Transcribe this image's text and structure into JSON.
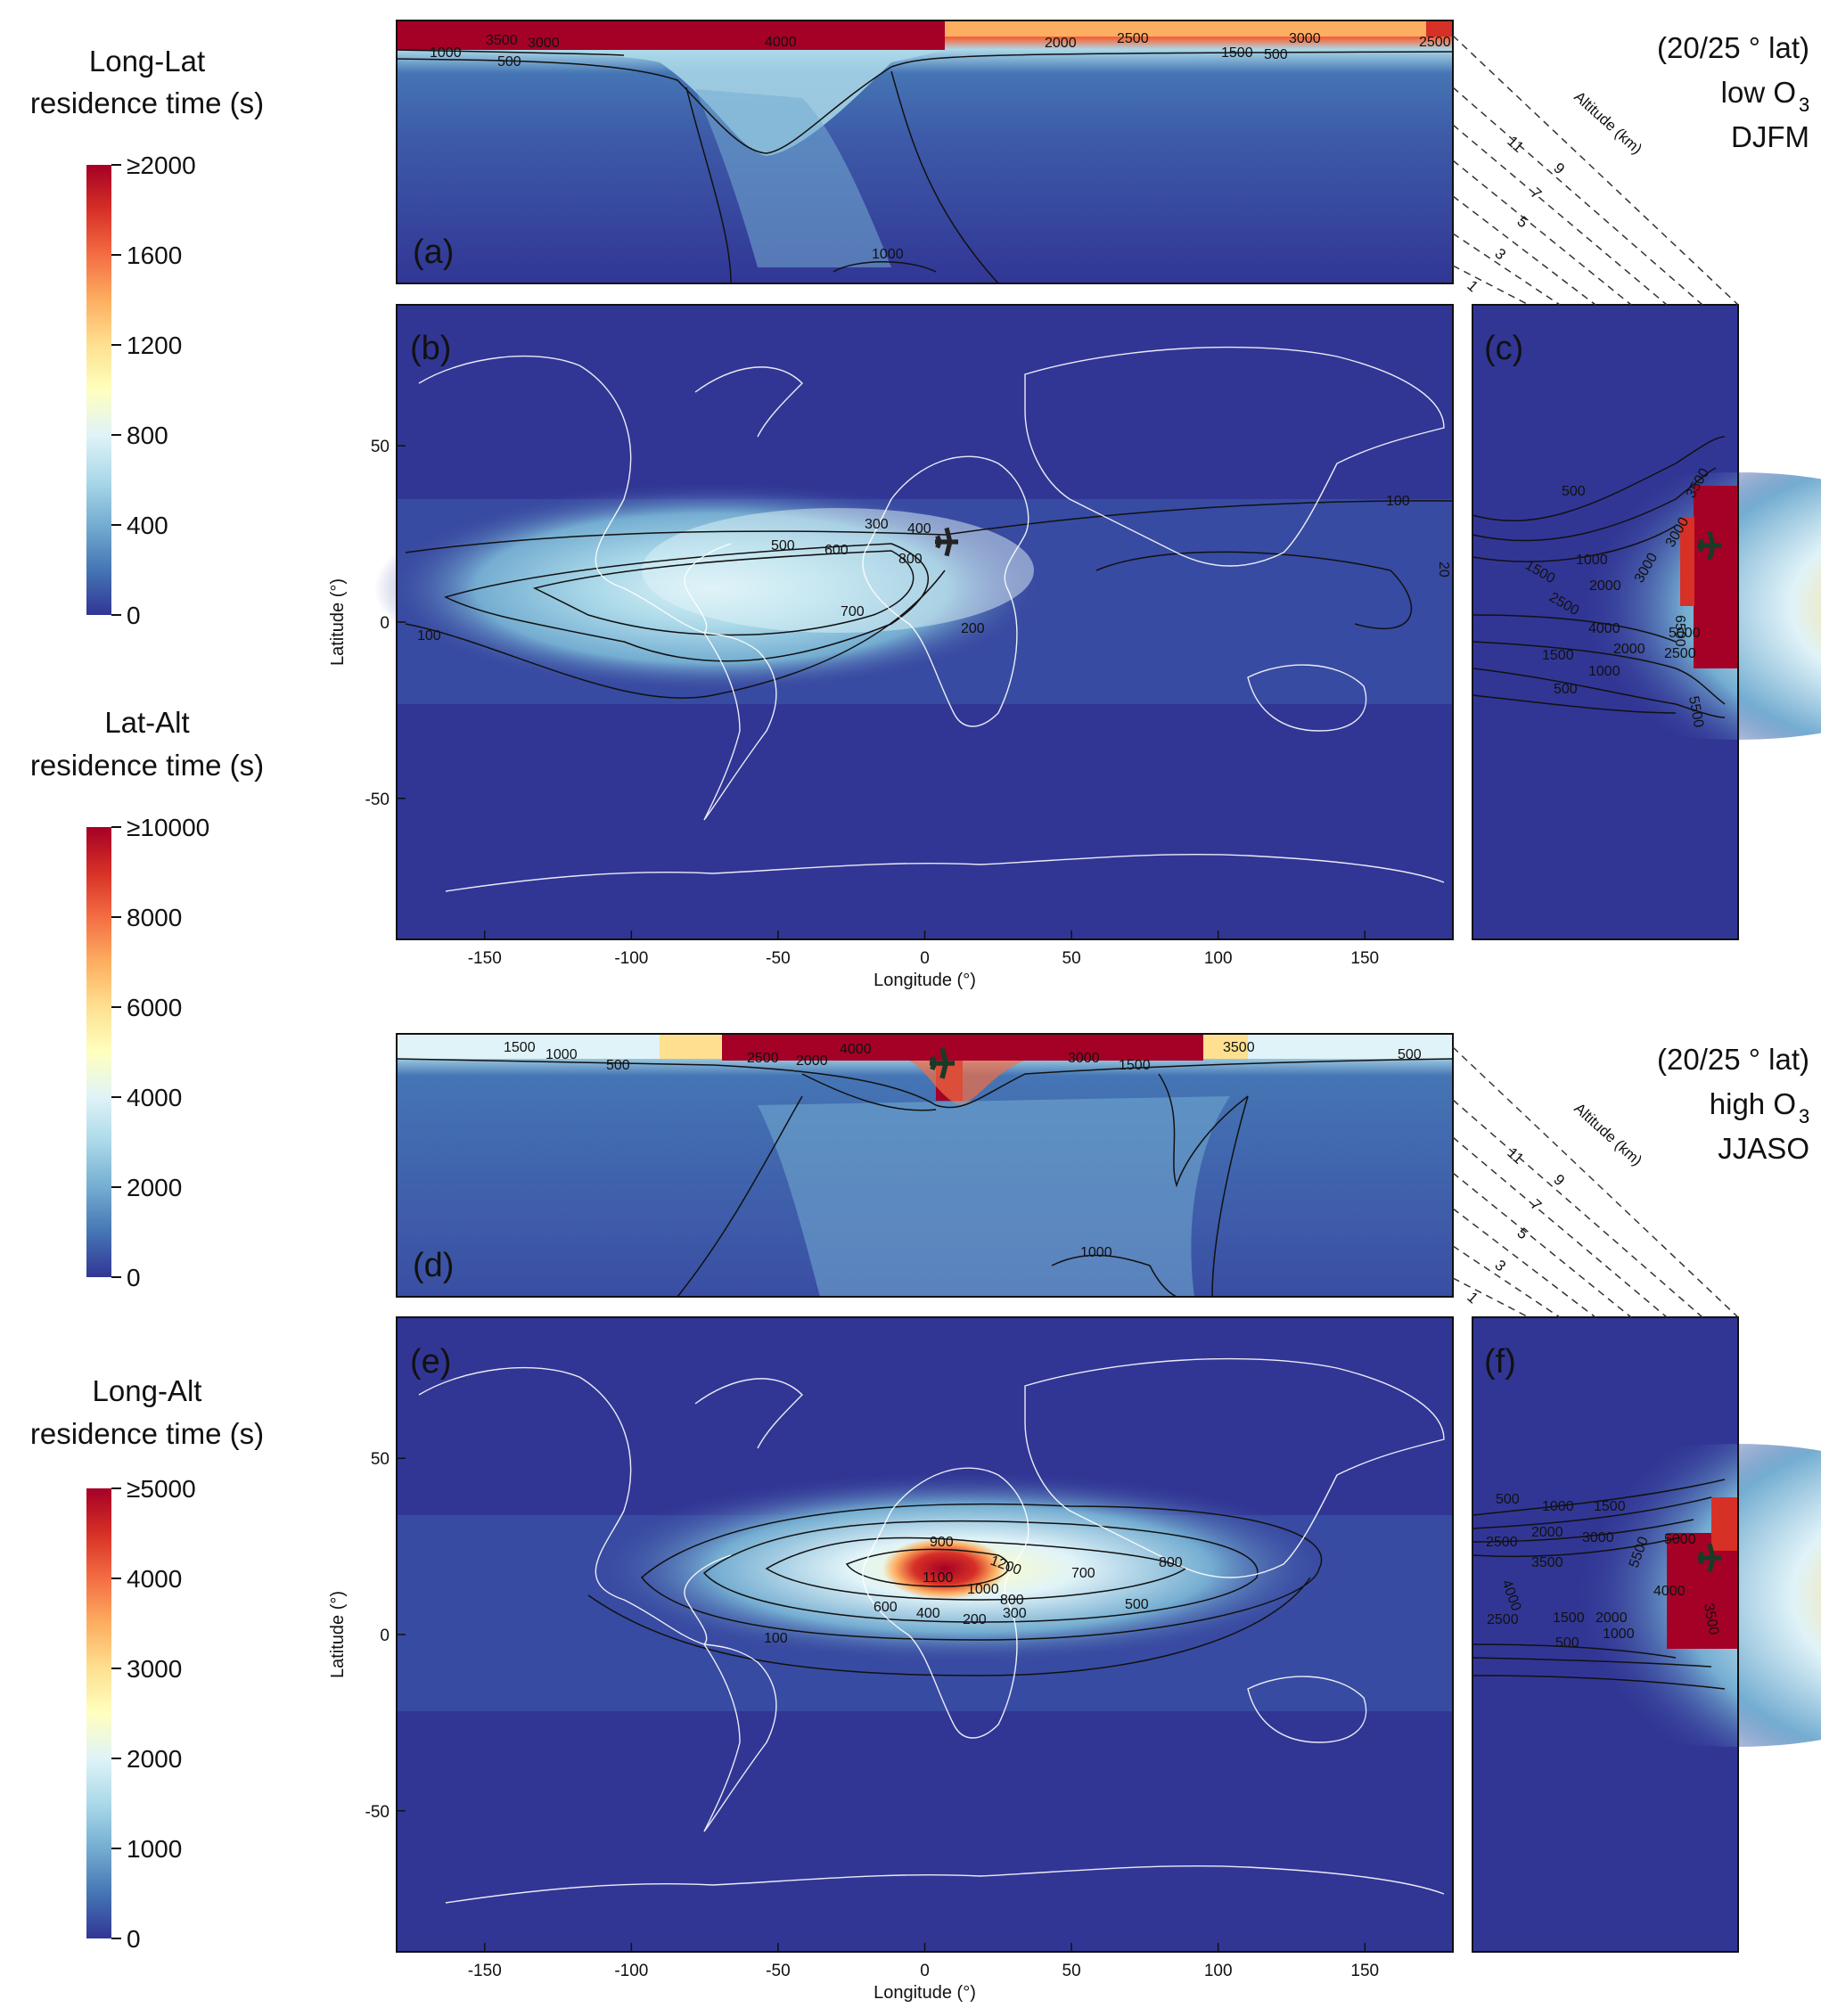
{
  "chart_data": {
    "type": "heatmap",
    "colormap": [
      "#313695",
      "#4575b4",
      "#74add1",
      "#abd9e9",
      "#e0f3f8",
      "#ffffbf",
      "#fee090",
      "#fdae61",
      "#f46d43",
      "#d73027",
      "#a50026"
    ],
    "colorbars": [
      {
        "title": [
          "Long-Lat",
          "residence time (s)"
        ],
        "ticks": [
          "≥2000",
          "1600",
          "1200",
          "800",
          "400",
          "0"
        ]
      },
      {
        "title": [
          "Lat-Alt",
          "residence time (s)"
        ],
        "ticks": [
          "≥10000",
          "8000",
          "6000",
          "4000",
          "2000",
          "0"
        ]
      },
      {
        "title": [
          "Long-Alt",
          "residence time (s)"
        ],
        "ticks": [
          "≥5000",
          "4000",
          "3000",
          "2000",
          "1000",
          "0"
        ]
      }
    ],
    "scenarios": [
      {
        "label_lines": [
          "(20/25 ° lat)",
          "low O",
          "DJFM"
        ],
        "label_sub": "3",
        "long_alt": {
          "panel": "(a)",
          "contours": [
            "3500",
            "3000",
            "4000",
            "2000",
            "2500",
            "3000",
            "1000",
            "500",
            "1500",
            "500",
            "2500",
            "1000"
          ]
        },
        "long_lat": {
          "panel": "(b)",
          "xlabel": "Longitude (°)",
          "ylabel": "Latitude (°)",
          "xticks": [
            "-150",
            "-100",
            "-50",
            "0",
            "50",
            "100",
            "150"
          ],
          "yticks": [
            "50",
            "0",
            "-50"
          ],
          "xlim": [
            -180,
            180
          ],
          "ylim": [
            -90,
            90
          ],
          "source": {
            "lon": 8,
            "lat": 22
          },
          "contours": [
            "100",
            "300",
            "400",
            "500",
            "600",
            "800",
            "700",
            "200",
            "100",
            "20"
          ]
        },
        "lat_alt": {
          "panel": "(c)",
          "contours": [
            "500",
            "1500",
            "1000",
            "2000",
            "3000",
            "2500",
            "3000",
            "4000",
            "5000",
            "1500",
            "1000",
            "2000",
            "2500",
            "500",
            "3500",
            "5500",
            "6500"
          ]
        }
      },
      {
        "label_lines": [
          "(20/25 ° lat)",
          "high O",
          "JJASO"
        ],
        "label_sub": "3",
        "long_alt": {
          "panel": "(d)",
          "contours": [
            "1500",
            "1000",
            "500",
            "2500",
            "2000",
            "4000",
            "3000",
            "1500",
            "3500",
            "500",
            "1000"
          ]
        },
        "long_lat": {
          "panel": "(e)",
          "xlabel": "Longitude (°)",
          "ylabel": "Latitude (°)",
          "xticks": [
            "-150",
            "-100",
            "-50",
            "0",
            "50",
            "100",
            "150"
          ],
          "yticks": [
            "50",
            "0",
            "-50"
          ],
          "xlim": [
            -180,
            180
          ],
          "ylim": [
            -90,
            90
          ],
          "source": {
            "lon": 8,
            "lat": 22
          },
          "contours": [
            "900",
            "1200",
            "1100",
            "1000",
            "700",
            "800",
            "800",
            "600",
            "400",
            "200",
            "300",
            "500",
            "100"
          ]
        },
        "lat_alt": {
          "panel": "(f)",
          "contours": [
            "500",
            "1000",
            "1500",
            "2500",
            "2000",
            "3000",
            "3500",
            "5000",
            "5500",
            "4000",
            "2500",
            "1500",
            "2000",
            "4000",
            "500",
            "1000",
            "3500"
          ]
        }
      }
    ],
    "altitude_axis": {
      "title": "Altitude (km)",
      "ticks": [
        "11",
        "9",
        "7",
        "5",
        "3",
        "1"
      ]
    }
  }
}
